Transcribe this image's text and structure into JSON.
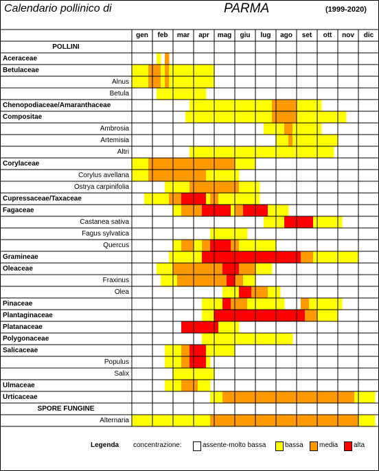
{
  "header": {
    "title": "Calendario pollinico di",
    "city": "PARMA",
    "years": "(1999-2020)"
  },
  "months": [
    "gen",
    "feb",
    "mar",
    "apr",
    "mag",
    "giu",
    "lug",
    "ago",
    "set",
    "ott",
    "nov",
    "dic"
  ],
  "colors": {
    "assente": "#ffffff",
    "bassa": "#ffff00",
    "media": "#ff9900",
    "alta": "#ff0000"
  },
  "sections": {
    "pollini": "POLLINI",
    "spore": "SPORE FUNGINE"
  },
  "rows": [
    {
      "label": "Aceraceae",
      "type": "family",
      "cells": "......Y.M.............................................."
    },
    {
      "label": "Betulaceae",
      "type": "family",
      "cells": "YYYYMMMYMYYYYYYYYYYY...................................."
    },
    {
      "label": "Alnus",
      "type": "species",
      "cells": "YYYYMMMYMYYYYYYYYYYY...................................."
    },
    {
      "label": "Betula",
      "type": "species",
      "cells": "......YYYYYYYYYYYY......................................"
    },
    {
      "label": "Chenopodiaceae/Amaranthaceae",
      "type": "family",
      "cells": "..............YYYYYYYYYYYYYYYYYYYYMMMMMMYYYYYY.........."
    },
    {
      "label": "Compositae",
      "type": "family",
      "cells": ".............YYYYYYYYYYYYYYYYYYYYYMMMMMMYYYYYYYYYYYY...."
    },
    {
      "label": "Ambrosia",
      "type": "species",
      "cells": "................................YYYYYMMYYYYYYY........."
    },
    {
      "label": "Artemisia",
      "type": "species",
      "cells": "...................................YYYMYYYYYYYYYYY......"
    },
    {
      "label": "Altri",
      "type": "species",
      "cells": "..............YYYYYYYYYYYYYYYYYYYYYYYYYYYYYYYYYYY......"
    },
    {
      "label": "Corylaceae",
      "type": "family",
      "cells": "YYYYMMMMMMMMMMMMMMMMMMMMMYYYYY.........................."
    },
    {
      "label": "Corylus avellana",
      "type": "species",
      "cells": "YYYYMMMMMMMMMMMMMMYYYYYYYY.............................."
    },
    {
      "label": "Ostrya carpinifolia",
      "type": "species",
      "cells": "........YYYYYYMMMMMMMMMMMMYYYYY.........................."
    },
    {
      "label": "Cupressaceae/Taxaceae",
      "type": "family",
      "cells": "...YYYYYYMMMAAAAAAYMMYYYYYYYYYY.........................."
    },
    {
      "label": "Fagaceae",
      "type": "family",
      "cells": "..........YYMMMMMAAAAAAAYMMAAAAAAYYYYY..................."
    },
    {
      "label": "Castanea sativa",
      "type": "species",
      "cells": "................................YYYYYAAAAAAAYYYYYYY....."
    },
    {
      "label": "Fagus sylvatica",
      "type": "species",
      "cells": "...................YYYYYYYYY............................"
    },
    {
      "label": "Quercus",
      "type": "species",
      "cells": "..........YYMMMYYMMAAAAAMMYYYYYYYYY......................"
    },
    {
      "label": "Gramineae",
      "type": "family",
      "cells": ".........YYYYYYYYAAAAAAAAAAAAAAAAAAAAAAAAMMMYYYYYYYYYYY.."
    },
    {
      "label": "Oleaceae",
      "type": "family",
      "cells": "......YYYYMMMMMMMMMMMMAAAAMMMMYYYY......................."
    },
    {
      "label": "Fraxinus",
      "type": "species",
      "cells": ".......YYYYMMMMMMMMMMMMAAMMYYY..........................."
    },
    {
      "label": "Olea",
      "type": "species",
      "cells": "......................YYYYAAAMMMMYYY...................."
    },
    {
      "label": "Pinaceae",
      "type": "family",
      "cells": ".................YYYYYAAMMMMYYYYYYYYY....MMYYYYYYYY......"
    },
    {
      "label": "Plantaginaceae",
      "type": "family",
      "cells": ".................YYYAAAAAAAAAAAAAAAAAAAAAAMMMYYYYY......."
    },
    {
      "label": "Platanaceae",
      "type": "family",
      "cells": "............AAAAAAAAAYYYYY..............................."
    },
    {
      "label": "Polygonaceae",
      "type": "family",
      "cells": ".................YYYYYYYYYYYYYYYYYYYYYY.................."
    },
    {
      "label": "Salicaceae",
      "type": "family",
      "cells": "........YYYYMMAAAAYYYYYYY..............................."
    },
    {
      "label": "Populus",
      "type": "species",
      "cells": "........YYYYMMAAAAY....................................."
    },
    {
      "label": "Salix",
      "type": "species",
      "cells": "..........YYYYYYYYYY...................................."
    },
    {
      "label": "Ulmaceae",
      "type": "family",
      "cells": "........YYYYMMMMYYY....................................."
    },
    {
      "label": "Urticaceae",
      "type": "family",
      "cells": "...................YYYMMMMMMMMMMMMMMMMMMMMMMMMMMMMMMMMYYYYY"
    },
    {
      "label": "Alternaria",
      "type": "species",
      "cells": "YYYYYYYYYYYYYYYYYYYMMMMMMMMMMMMMMMMMMMMMMMMMMMMMMMMMMMMYYYY"
    }
  ],
  "legend": {
    "title": "Legenda",
    "concentration_label": "concentrazione:",
    "items": [
      {
        "label": "assente-molto bassa",
        "color": "#ffffff"
      },
      {
        "label": "bassa",
        "color": "#ffff00"
      },
      {
        "label": "media",
        "color": "#ff9900"
      },
      {
        "label": "alta",
        "color": "#ff0000"
      }
    ]
  }
}
